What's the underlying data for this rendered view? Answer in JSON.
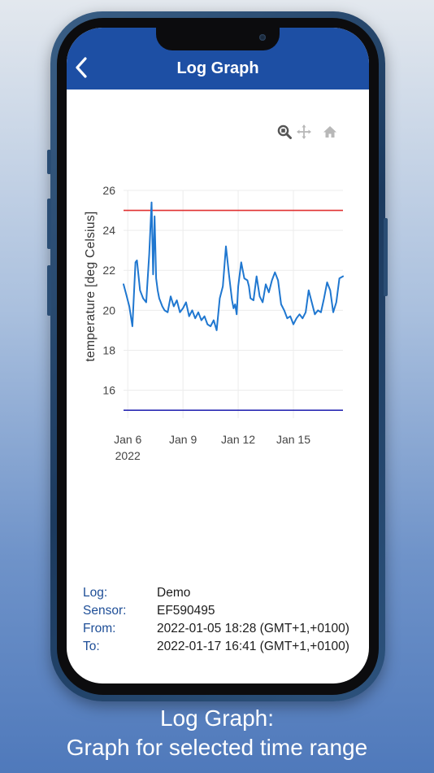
{
  "header": {
    "title": "Log Graph"
  },
  "icons": {
    "back": "chevron-left-icon",
    "zoom": "zoom-icon",
    "pan": "pan-icon",
    "home": "home-icon"
  },
  "colors": {
    "header_bg": "#1d4fa4",
    "series": "#1f77d0",
    "upper_limit": "#e03131",
    "lower_limit": "#2a2ab3",
    "label": "#1e4e97"
  },
  "chart_data": {
    "type": "line",
    "title": "",
    "xlabel": "",
    "ylabel": "temperature [deg Celsius]",
    "ylim": [
      14.6,
      26
    ],
    "xlim": [
      "2022-01-05 18:28",
      "2022-01-17 16:41"
    ],
    "y_ticks": [
      16,
      18,
      20,
      22,
      24,
      26
    ],
    "x_ticks": [
      {
        "label": "Jan 6",
        "sublabel": "2022",
        "date": "2022-01-06"
      },
      {
        "label": "Jan 9",
        "sublabel": "",
        "date": "2022-01-09"
      },
      {
        "label": "Jan 12",
        "sublabel": "",
        "date": "2022-01-12"
      },
      {
        "label": "Jan 15",
        "sublabel": "",
        "date": "2022-01-15"
      }
    ],
    "grid": true,
    "reference_lines": [
      {
        "y": 25,
        "color": "#e03131"
      },
      {
        "y": 15,
        "color": "#2a2ab3"
      }
    ],
    "series": [
      {
        "color": "#1f77d0",
        "x": [
          "2022-01-05 18:28",
          "2022-01-05 22:00",
          "2022-01-06 02:00",
          "2022-01-06 06:00",
          "2022-01-06 08:00",
          "2022-01-06 10:00",
          "2022-01-06 12:00",
          "2022-01-06 16:00",
          "2022-01-06 20:00",
          "2022-01-07 00:00",
          "2022-01-07 04:00",
          "2022-01-07 07:00",
          "2022-01-07 09:00",
          "2022-01-07 11:00",
          "2022-01-07 13:00",
          "2022-01-07 15:00",
          "2022-01-07 17:00",
          "2022-01-07 19:00",
          "2022-01-07 21:00",
          "2022-01-08 00:00",
          "2022-01-08 04:00",
          "2022-01-08 08:00",
          "2022-01-08 12:00",
          "2022-01-08 16:00",
          "2022-01-08 20:00",
          "2022-01-09 00:00",
          "2022-01-09 04:00",
          "2022-01-09 08:00",
          "2022-01-09 12:00",
          "2022-01-09 16:00",
          "2022-01-09 20:00",
          "2022-01-10 00:00",
          "2022-01-10 04:00",
          "2022-01-10 08:00",
          "2022-01-10 12:00",
          "2022-01-10 16:00",
          "2022-01-10 20:00",
          "2022-01-11 00:00",
          "2022-01-11 04:00",
          "2022-01-11 08:00",
          "2022-01-11 12:00",
          "2022-01-11 16:00",
          "2022-01-11 18:00",
          "2022-01-11 20:00",
          "2022-01-11 22:00",
          "2022-01-12 00:00",
          "2022-01-12 04:00",
          "2022-01-12 08:00",
          "2022-01-12 12:00",
          "2022-01-12 14:00",
          "2022-01-12 16:00",
          "2022-01-12 20:00",
          "2022-01-13 00:00",
          "2022-01-13 04:00",
          "2022-01-13 08:00",
          "2022-01-13 12:00",
          "2022-01-13 16:00",
          "2022-01-13 20:00",
          "2022-01-14 00:00",
          "2022-01-14 04:00",
          "2022-01-14 08:00",
          "2022-01-14 12:00",
          "2022-01-14 16:00",
          "2022-01-14 20:00",
          "2022-01-15 00:00",
          "2022-01-15 04:00",
          "2022-01-15 08:00",
          "2022-01-15 12:00",
          "2022-01-15 16:00",
          "2022-01-15 20:00",
          "2022-01-16 00:00",
          "2022-01-16 04:00",
          "2022-01-16 08:00",
          "2022-01-16 12:00",
          "2022-01-16 16:00",
          "2022-01-16 20:00",
          "2022-01-17 00:00",
          "2022-01-17 04:00",
          "2022-01-17 08:00",
          "2022-01-17 12:00",
          "2022-01-17 16:41"
        ],
        "y": [
          21.3,
          20.8,
          20.2,
          19.2,
          20.8,
          22.4,
          22.5,
          21.0,
          20.6,
          20.4,
          22.8,
          25.4,
          21.8,
          24.7,
          21.6,
          21.0,
          20.6,
          20.4,
          20.2,
          20.0,
          19.9,
          20.7,
          20.2,
          20.5,
          19.9,
          20.1,
          20.4,
          19.7,
          20.0,
          19.6,
          19.9,
          19.5,
          19.7,
          19.3,
          19.2,
          19.5,
          19.0,
          20.6,
          21.2,
          23.2,
          21.8,
          20.5,
          20.1,
          20.3,
          19.8,
          21.2,
          22.4,
          21.6,
          21.5,
          21.2,
          20.6,
          20.5,
          21.7,
          20.7,
          20.4,
          21.3,
          20.9,
          21.5,
          21.9,
          21.5,
          20.3,
          20.0,
          19.6,
          19.7,
          19.3,
          19.6,
          19.8,
          19.6,
          19.9,
          21.0,
          20.4,
          19.8,
          20.0,
          19.9,
          20.6,
          21.4,
          21.0,
          19.9,
          20.4,
          21.6,
          21.7
        ]
      }
    ]
  },
  "info": {
    "log_label": "Log:",
    "log_value": "Demo",
    "sensor_label": "Sensor:",
    "sensor_value": "EF590495",
    "from_label": "From:",
    "from_value": "2022-01-05 18:28 (GMT+1,+0100)",
    "to_label": "To:",
    "to_value": "2022-01-17 16:41 (GMT+1,+0100)"
  },
  "caption": {
    "line1": "Log Graph:",
    "line2": "Graph for selected time range"
  }
}
